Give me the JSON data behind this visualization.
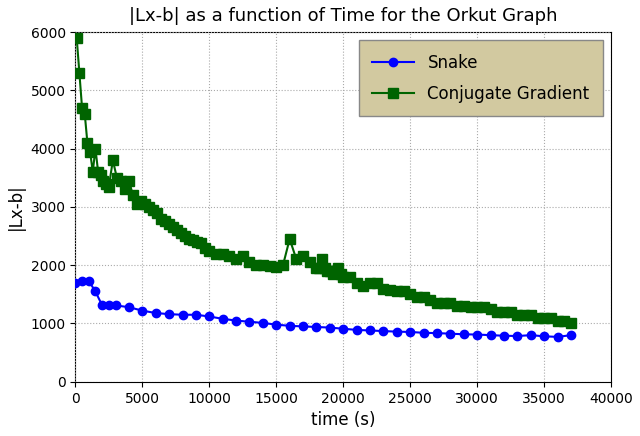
{
  "title": "|Lx-b| as a function of Time for the Orkut Graph",
  "xlabel": "time (s)",
  "ylabel": "|Lx-b|",
  "xlim": [
    0,
    40000
  ],
  "ylim": [
    0,
    6000
  ],
  "xticks": [
    0,
    5000,
    10000,
    15000,
    20000,
    25000,
    30000,
    35000,
    40000
  ],
  "yticks": [
    0,
    1000,
    2000,
    3000,
    4000,
    5000,
    6000
  ],
  "background_color": "#f5f5dc",
  "snake_color": "#0000ff",
  "cg_color": "#006400",
  "snake_x": [
    0,
    500,
    1000,
    1500,
    2000,
    2500,
    3000,
    4000,
    5000,
    6000,
    7000,
    8000,
    9000,
    10000,
    11000,
    12000,
    13000,
    14000,
    15000,
    16000,
    17000,
    18000,
    19000,
    20000,
    21000,
    22000,
    23000,
    24000,
    25000,
    26000,
    27000,
    28000,
    29000,
    30000,
    31000,
    32000,
    33000,
    34000,
    35000,
    36000,
    37000
  ],
  "snake_y": [
    1700,
    1730,
    1730,
    1550,
    1310,
    1310,
    1310,
    1280,
    1220,
    1180,
    1160,
    1150,
    1150,
    1120,
    1080,
    1050,
    1030,
    1010,
    980,
    960,
    950,
    940,
    930,
    910,
    890,
    880,
    870,
    860,
    855,
    840,
    835,
    825,
    815,
    810,
    800,
    790,
    785,
    800,
    780,
    770,
    800
  ],
  "cg_x": [
    100,
    300,
    500,
    700,
    900,
    1100,
    1300,
    1500,
    1700,
    1900,
    2100,
    2300,
    2500,
    2800,
    3100,
    3400,
    3700,
    4000,
    4300,
    4600,
    4900,
    5200,
    5500,
    5800,
    6100,
    6400,
    6700,
    7000,
    7300,
    7600,
    7900,
    8200,
    8500,
    8800,
    9100,
    9400,
    9700,
    10000,
    10500,
    11000,
    11500,
    12000,
    12500,
    13000,
    13500,
    14000,
    14500,
    15000,
    15500,
    16000,
    16500,
    17000,
    17500,
    18000,
    18200,
    18400,
    18600,
    18800,
    19000,
    19200,
    19400,
    19600,
    19800,
    20000,
    20500,
    21000,
    21500,
    22000,
    22500,
    23000,
    23500,
    24000,
    24500,
    25000,
    25500,
    26000,
    26500,
    27000,
    27500,
    28000,
    28500,
    29000,
    29500,
    30000,
    30500,
    31000,
    31500,
    32000,
    32500,
    33000,
    33500,
    34000,
    34500,
    35000,
    35500,
    36000,
    36500,
    37000
  ],
  "cg_y": [
    5900,
    5300,
    4700,
    4600,
    4100,
    3950,
    3600,
    4000,
    3600,
    3550,
    3450,
    3400,
    3350,
    3800,
    3500,
    3450,
    3300,
    3450,
    3200,
    3050,
    3100,
    3050,
    3000,
    2950,
    2900,
    2800,
    2750,
    2700,
    2650,
    2600,
    2550,
    2500,
    2450,
    2430,
    2400,
    2380,
    2300,
    2250,
    2200,
    2200,
    2150,
    2100,
    2150,
    2050,
    2000,
    2000,
    1980,
    1970,
    2000,
    2450,
    2100,
    2150,
    2050,
    1950,
    1950,
    2100,
    1950,
    1900,
    1900,
    1850,
    1900,
    1950,
    1850,
    1800,
    1800,
    1700,
    1650,
    1700,
    1700,
    1600,
    1580,
    1550,
    1550,
    1500,
    1450,
    1450,
    1400,
    1350,
    1350,
    1350,
    1300,
    1300,
    1280,
    1280,
    1280,
    1250,
    1200,
    1200,
    1200,
    1150,
    1150,
    1150,
    1100,
    1100,
    1100,
    1050,
    1050,
    1000
  ],
  "legend_facecolor": "#d2c9a0",
  "legend_edgecolor": "#888888",
  "grid_color": "#aaaaaa",
  "grid_linestyle": ":"
}
